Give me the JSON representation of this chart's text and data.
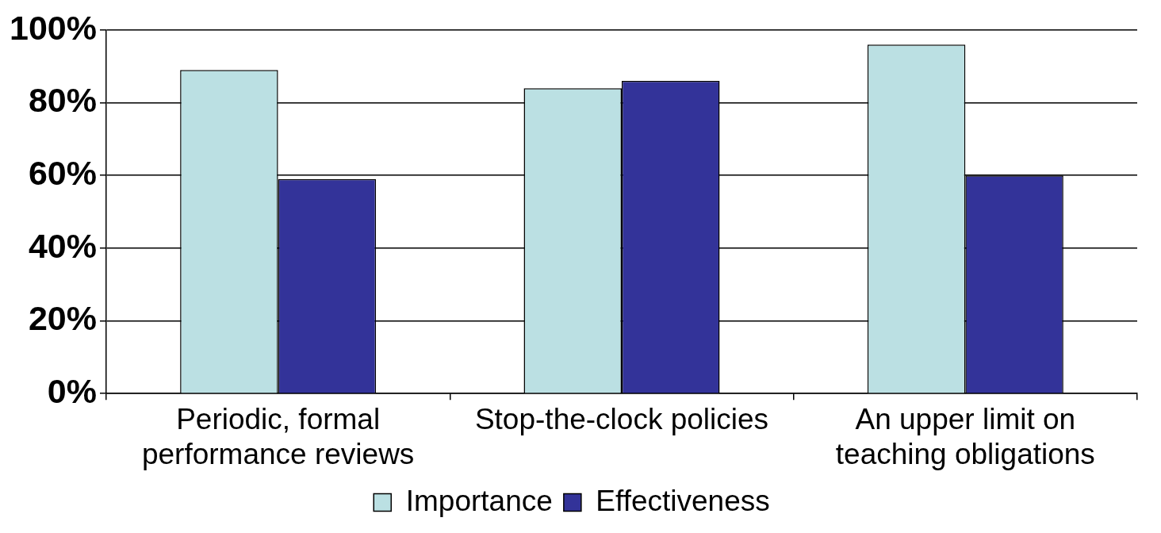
{
  "chart_data": {
    "type": "bar",
    "categories": [
      "Periodic, formal performance reviews",
      "Stop-the-clock policies",
      "An upper limit on teaching obligations"
    ],
    "series": [
      {
        "name": "Importance",
        "color": "#bbe0e3",
        "values": [
          89,
          84,
          96
        ]
      },
      {
        "name": "Effectiveness",
        "color": "#333399",
        "values": [
          59,
          86,
          60
        ]
      }
    ],
    "ylim": [
      0,
      100
    ],
    "yticks": [
      {
        "value": 0,
        "label": "0%"
      },
      {
        "value": 20,
        "label": "20%"
      },
      {
        "value": 40,
        "label": "40%"
      },
      {
        "value": 60,
        "label": "60%"
      },
      {
        "value": 80,
        "label": "80%"
      },
      {
        "value": 100,
        "label": "100%"
      }
    ],
    "grid": "y",
    "legend": "bottom"
  }
}
